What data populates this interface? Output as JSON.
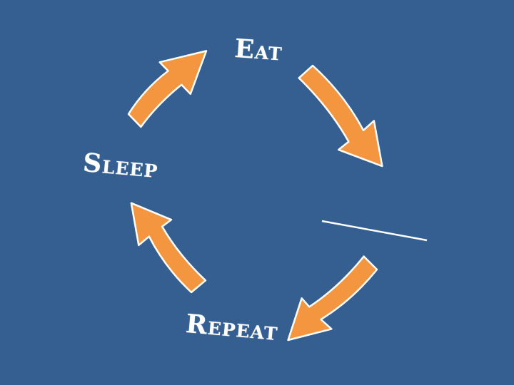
{
  "background_color": "#355F91",
  "arrow_color": "#F4963F",
  "arrow_outline_color": "#FFFFFF",
  "divider_color": "#FFFFFF",
  "labels": {
    "eat": "Eat",
    "sleep": "Sleep",
    "repeat": "Repeat"
  },
  "arrows": [
    {
      "icon": "arrow-curved-up-right-icon"
    },
    {
      "icon": "arrow-curved-down-right-icon"
    },
    {
      "icon": "arrow-curved-down-left-icon"
    },
    {
      "icon": "arrow-curved-up-left-icon"
    }
  ]
}
